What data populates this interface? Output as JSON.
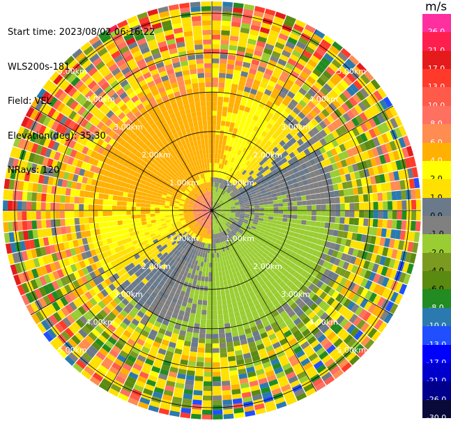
{
  "header": {
    "start_time": "Start time: 2023/08/02 06:16:22",
    "instrument": "WLS200s-181",
    "field": "Field: VEL",
    "elevation": "Elevation(deg): 35.30",
    "nrays": "NRays: 120"
  },
  "colorbar": {
    "unit": "m/s",
    "labels": [
      "26.0",
      "21.0",
      "17.0",
      "13.0",
      "10.0",
      "8.0",
      "6.0",
      "4.0",
      "2.0",
      "1.0",
      "0.0",
      "-1.0",
      "-2.0",
      "-4.0",
      "-6.0",
      "-8.0",
      "-10.0",
      "-13.0",
      "-17.0",
      "-21.0",
      "-26.0",
      "-30.0"
    ],
    "colors": [
      "#ff2fa0",
      "#ff1f4f",
      "#e51b1b",
      "#ff3a2a",
      "#ff5a4a",
      "#ff7060",
      "#ff8c50",
      "#ffb000",
      "#ffff00",
      "#ffe000",
      "#6a7a8a",
      "#808080",
      "#9acd32",
      "#7a9a20",
      "#5a8a10",
      "#228b22",
      "#2a7ab0",
      "#1f4fff",
      "#0000ff",
      "#0000cc",
      "#00008b",
      "#0a0a3a"
    ]
  },
  "chart_data": {
    "type": "heatmap",
    "subtype": "polar_ppi_velocity",
    "field": "VEL",
    "units": "m/s",
    "n_rays": 120,
    "elevation_deg": 35.3,
    "range_rings_km": [
      1,
      2,
      3,
      4,
      5
    ],
    "ring_labels": [
      "1.00km",
      "2.00km",
      "3.00km",
      "4.00km",
      "5.00km"
    ],
    "max_range_km": 5.3,
    "color_scale_min": -30,
    "color_scale_max": 26
  }
}
